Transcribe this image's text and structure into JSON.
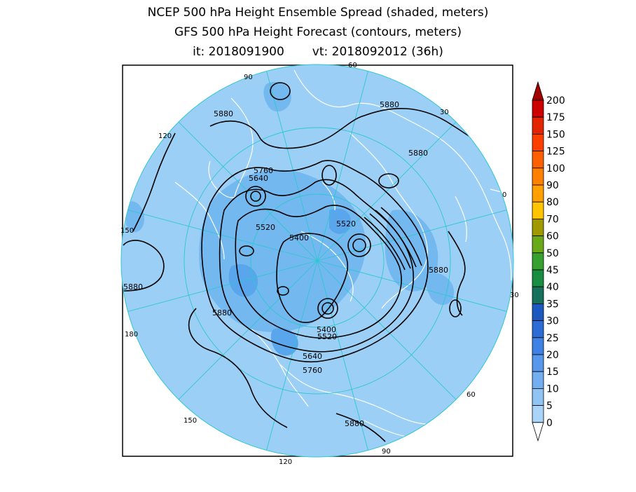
{
  "header": {
    "title_line1": "NCEP 500 hPa Height Ensemble Spread (shaded, meters)",
    "title_line2": "GFS 500 hPa Height Forecast (contours, meters)",
    "init_time": "it: 2018091900",
    "valid_time": "vt: 2018092012 (36h)"
  },
  "map": {
    "projection": "north-polar-stereographic",
    "background_spread_color": "#9ccff5",
    "spread_patch_colors": [
      "#74b8f0",
      "#5aa6ec"
    ],
    "land_outline_color": "#ffffff",
    "graticule_color": "#2ec7d1",
    "contour_color": "#000000",
    "longitude_labels": [
      "60",
      "30",
      "0",
      "30",
      "60",
      "90",
      "120",
      "150",
      "180",
      "150",
      "120",
      "90"
    ],
    "contour_labels": [
      "5880",
      "5880",
      "5880",
      "5880",
      "5880",
      "5880",
      "5880",
      "5760",
      "5640",
      "5520",
      "5400",
      "5520",
      "5400",
      "5520",
      "5640",
      "5760"
    ]
  },
  "colorbar": {
    "levels": [
      "200",
      "175",
      "150",
      "125",
      "100",
      "90",
      "80",
      "70",
      "60",
      "50",
      "45",
      "40",
      "35",
      "30",
      "25",
      "20",
      "15",
      "10",
      "5",
      "0"
    ],
    "colors": [
      "#a00000",
      "#cc0000",
      "#e32400",
      "#ff3f00",
      "#ff6000",
      "#ff8000",
      "#ffa000",
      "#ffc400",
      "#a09a00",
      "#6aaa18",
      "#38a030",
      "#188c40",
      "#16705c",
      "#1c58c0",
      "#2b6cd6",
      "#3f82e6",
      "#5898ec",
      "#73aef0",
      "#8fc4f4",
      "#a8d4f8"
    ]
  }
}
